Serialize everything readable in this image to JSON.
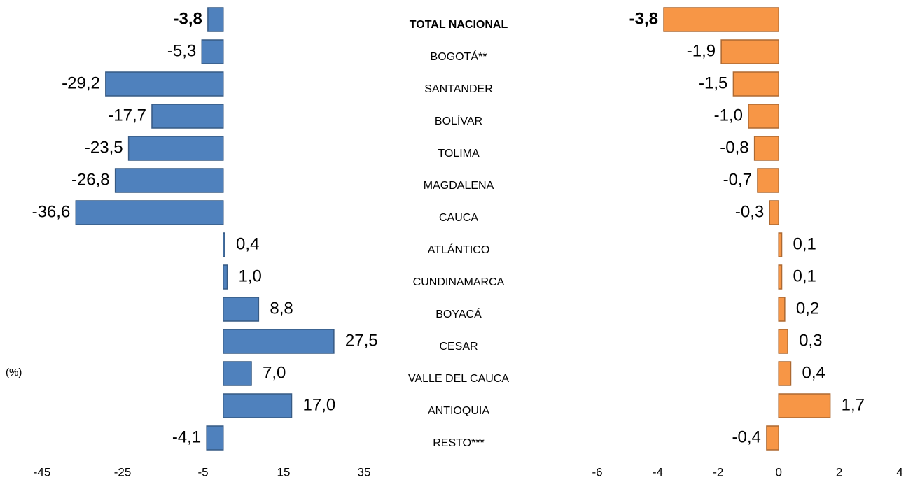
{
  "chart_data": [
    {
      "type": "bar",
      "orientation": "horizontal",
      "annotation": "(%)",
      "categories": [
        "TOTAL NACIONAL",
        "BOGOTÁ**",
        "SANTANDER",
        "BOLÍVAR",
        "TOLIMA",
        "MAGDALENA",
        "CAUCA",
        "ATLÁNTICO",
        "CUNDINAMARCA",
        "BOYACÁ",
        "CESAR",
        "VALLE DEL CAUCA",
        "ANTIOQUIA",
        "RESTO***"
      ],
      "values": [
        -3.8,
        -5.3,
        -29.2,
        -17.7,
        -23.5,
        -26.8,
        -36.6,
        0.4,
        1.0,
        8.8,
        27.5,
        7.0,
        17.0,
        -4.1
      ],
      "value_labels": [
        "-3,8",
        "-5,3",
        "-29,2",
        "-17,7",
        "-23,5",
        "-26,8",
        "-36,6",
        "0,4",
        "1,0",
        "8,8",
        "27,5",
        "7,0",
        "17,0",
        "-4,1"
      ],
      "color": "#4f81bd",
      "xlim": [
        -45,
        35
      ],
      "xticks": [
        -45,
        -25,
        -5,
        15,
        35
      ]
    },
    {
      "type": "bar",
      "orientation": "horizontal",
      "values": [
        -3.8,
        -1.9,
        -1.5,
        -1.0,
        -0.8,
        -0.7,
        -0.3,
        0.1,
        0.1,
        0.2,
        0.3,
        0.4,
        1.7,
        -0.4
      ],
      "value_labels": [
        "-3,8",
        "-1,9",
        "-1,5",
        "-1,0",
        "-0,8",
        "-0,7",
        "-0,3",
        "0,1",
        "0,1",
        "0,2",
        "0,3",
        "0,4",
        "1,7",
        "-0,4"
      ],
      "color": "#f79646",
      "xlim": [
        -6,
        4
      ],
      "xticks": [
        -6,
        -4,
        -2,
        0,
        2,
        4
      ]
    }
  ]
}
